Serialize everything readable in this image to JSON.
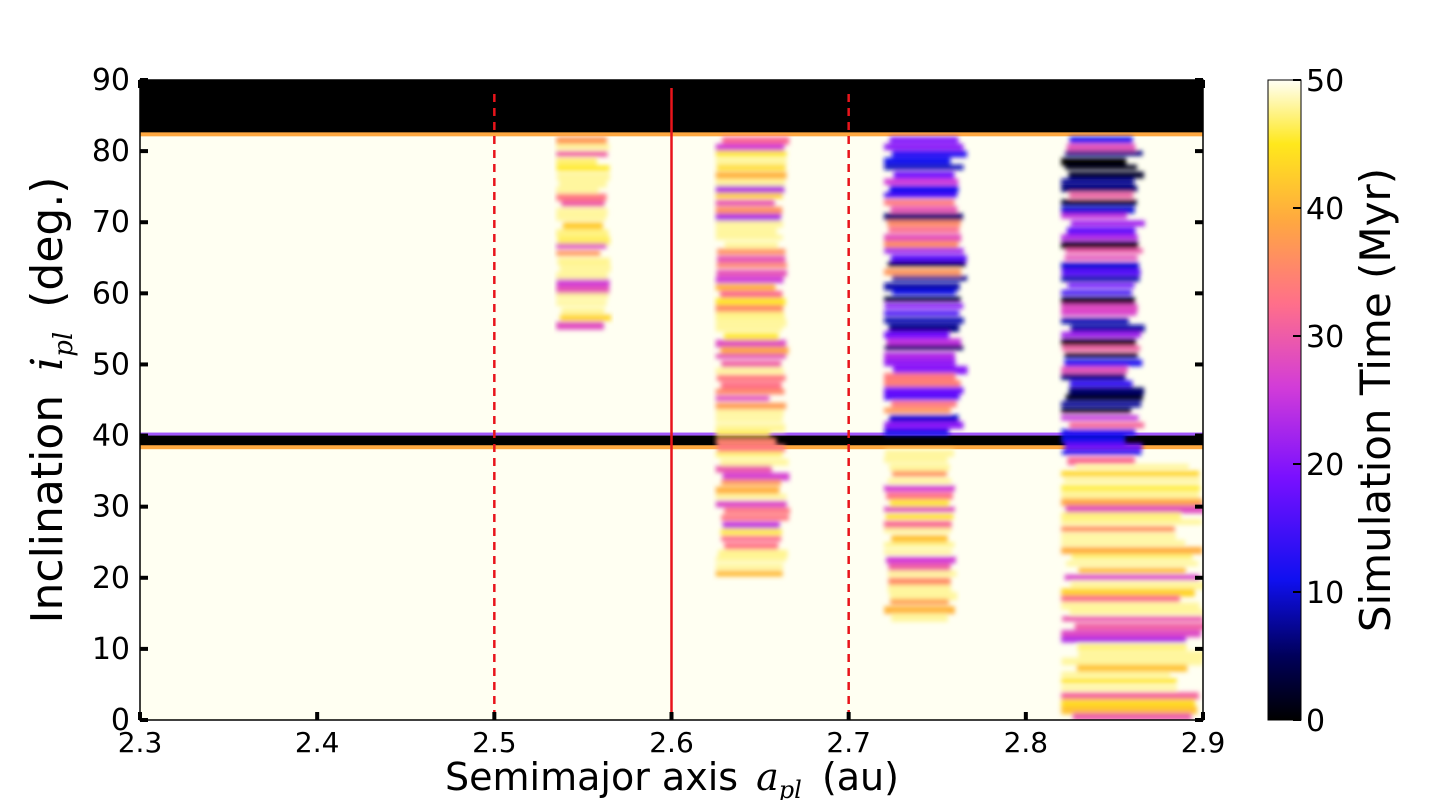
{
  "chart_data": {
    "type": "heatmap",
    "title": "",
    "xlabel": "Semimajor axis",
    "xlabel_symbol": "a",
    "xlabel_subscript": "pl",
    "xlabel_unit": "(au)",
    "ylabel": "Inclination",
    "ylabel_symbol": "i",
    "ylabel_subscript": "pl",
    "ylabel_unit": "(deg.)",
    "xlim": [
      2.3,
      2.9
    ],
    "ylim": [
      0,
      90
    ],
    "xticks": [
      "2.3",
      "2.4",
      "2.5",
      "2.6",
      "2.7",
      "2.8",
      "2.9"
    ],
    "yticks": [
      "0",
      "10",
      "20",
      "30",
      "40",
      "50",
      "60",
      "70",
      "80",
      "90"
    ],
    "colorbar": {
      "label": "Simulation Time (Myr)",
      "range": [
        0,
        50
      ],
      "ticks": [
        "0",
        "10",
        "20",
        "30",
        "40",
        "50"
      ],
      "colormap": "gnuplot2"
    },
    "vertical_lines": [
      {
        "x": 2.5,
        "style": "dashed",
        "color": "#e8141b"
      },
      {
        "x": 2.6,
        "style": "solid",
        "color": "#e8141b"
      },
      {
        "x": 2.7,
        "style": "dashed",
        "color": "#e8141b"
      }
    ],
    "regions": [
      {
        "desc": "unstable top band",
        "x": [
          2.3,
          2.9
        ],
        "y": [
          82.5,
          90
        ],
        "value": 0
      },
      {
        "desc": "instability band near 39 deg",
        "x": [
          2.3,
          2.9
        ],
        "y": [
          38.5,
          40
        ],
        "value": 0
      },
      {
        "desc": "unstable column",
        "x": [
          2.72,
          2.765
        ],
        "y": [
          40,
          82
        ],
        "value": 20
      },
      {
        "desc": "unstable column",
        "x": [
          2.82,
          2.865
        ],
        "y": [
          36,
          82
        ],
        "value": 15
      },
      {
        "desc": "partially unstable column",
        "x": [
          2.625,
          2.665
        ],
        "y": [
          20,
          82
        ],
        "value": 40
      },
      {
        "desc": "partially unstable column",
        "x": [
          2.535,
          2.565
        ],
        "y": [
          55,
          82
        ],
        "value": 42
      },
      {
        "desc": "scattered unstable cells",
        "x": [
          2.82,
          2.9
        ],
        "y": [
          0,
          36
        ],
        "value": 40
      },
      {
        "desc": "scattered unstable cells",
        "x": [
          2.72,
          2.76
        ],
        "y": [
          14,
          38
        ],
        "value": 42
      }
    ]
  },
  "colors": {
    "stable": "#fffff2",
    "unstable": "#000000",
    "line": "#e8141b"
  }
}
